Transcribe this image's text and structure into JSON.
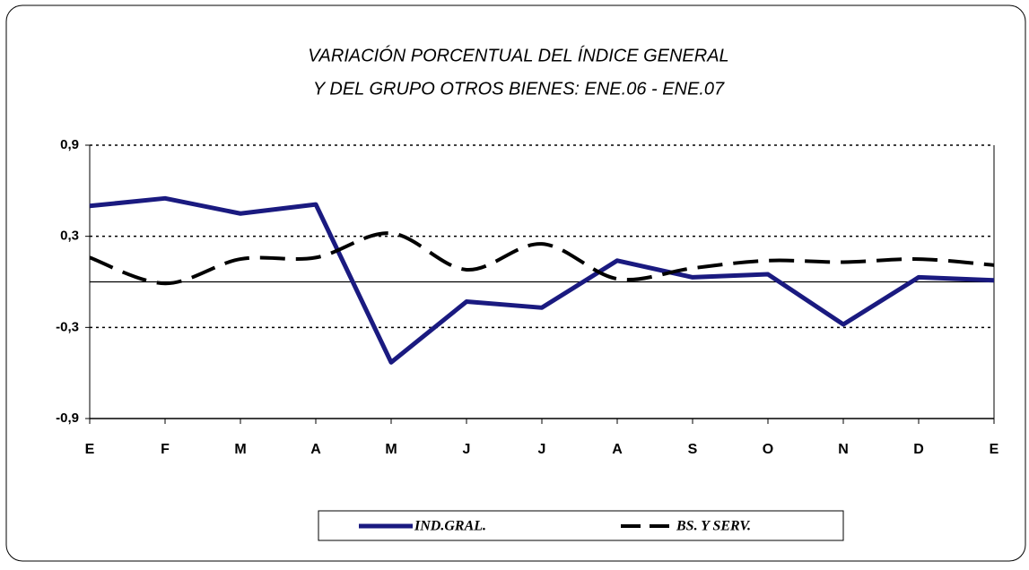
{
  "chart_data": {
    "type": "line",
    "title": "VARIACIÓN PORCENTUAL DEL ÍNDICE GENERAL",
    "subtitle": "Y DEL GRUPO OTROS BIENES: ENE.06 - ENE.07",
    "categories": [
      "E",
      "F",
      "M",
      "A",
      "M",
      "J",
      "J",
      "A",
      "S",
      "O",
      "N",
      "D",
      "E"
    ],
    "series": [
      {
        "name": "IND.GRAL.",
        "color": "#1a1a80",
        "style": "solid",
        "values": [
          0.5,
          0.55,
          0.45,
          0.51,
          -0.53,
          -0.13,
          -0.17,
          0.14,
          0.03,
          0.05,
          -0.28,
          0.03,
          0.01
        ]
      },
      {
        "name": "BS. Y SERV.",
        "color": "#000000",
        "style": "dashed",
        "values": [
          0.16,
          -0.01,
          0.15,
          0.16,
          0.32,
          0.08,
          0.25,
          0.02,
          0.09,
          0.14,
          0.13,
          0.15,
          0.11
        ]
      }
    ],
    "ylim": [
      -0.9,
      0.9
    ],
    "yticks": [
      {
        "value": 0.9,
        "label": "0,9"
      },
      {
        "value": 0.3,
        "label": "0,3"
      },
      {
        "value": -0.3,
        "label": "-0,3"
      },
      {
        "value": -0.9,
        "label": "-0,9"
      }
    ],
    "grid": true
  }
}
